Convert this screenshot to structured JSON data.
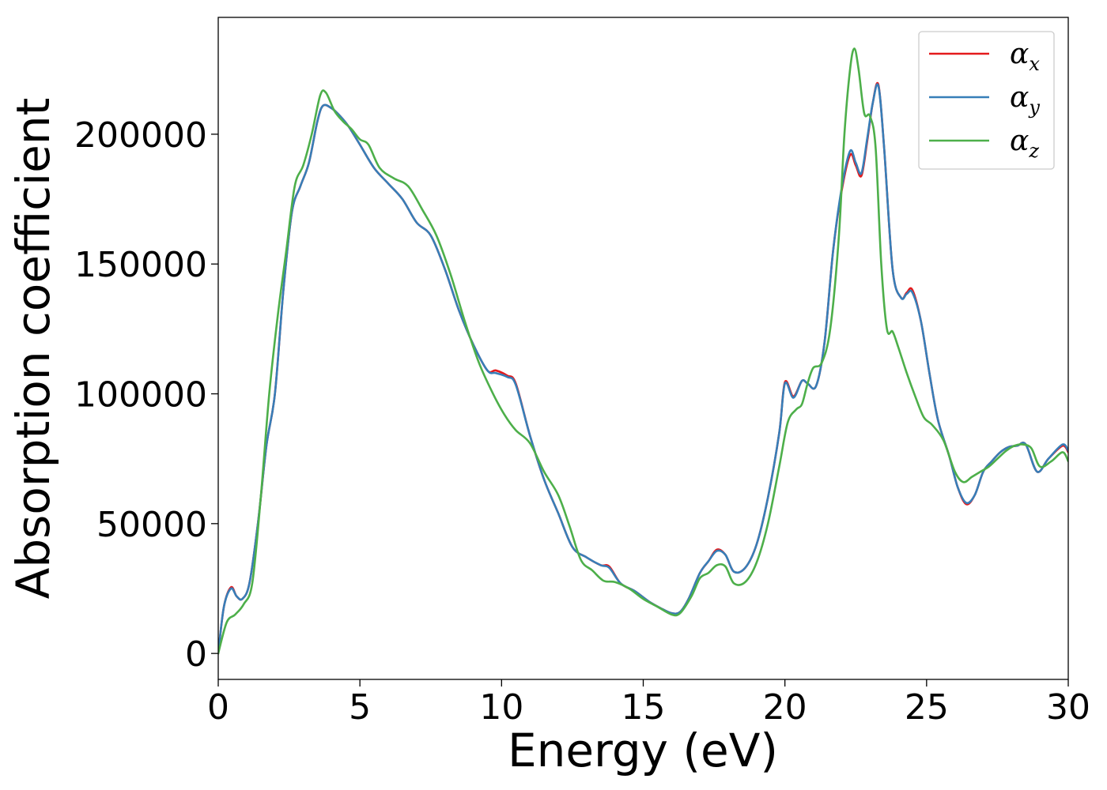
{
  "chart_data": {
    "type": "line",
    "title": "",
    "xlabel": "Energy (eV)",
    "ylabel": "Absorption coefficient",
    "xlim": [
      0,
      30
    ],
    "ylim": [
      -10000,
      245000
    ],
    "xticks": [
      0,
      5,
      10,
      15,
      20,
      25,
      30
    ],
    "yticks": [
      0,
      50000,
      100000,
      150000,
      200000
    ],
    "grid": false,
    "legend_position": "top-right",
    "series": [
      {
        "name": "α",
        "subscript": "x",
        "color": "#e41a1c",
        "x": [
          0,
          0.2,
          0.45,
          0.65,
          0.85,
          1.1,
          1.4,
          1.7,
          2.0,
          2.3,
          2.6,
          2.9,
          3.2,
          3.5,
          3.7,
          4.0,
          4.3,
          4.6,
          5.0,
          5.5,
          6.0,
          6.5,
          7.0,
          7.5,
          8.0,
          8.5,
          9.0,
          9.5,
          9.8,
          10.2,
          10.5,
          11.0,
          11.5,
          12.0,
          12.5,
          13.0,
          13.5,
          13.8,
          14.2,
          14.7,
          15.2,
          15.6,
          16.0,
          16.3,
          16.6,
          17.0,
          17.3,
          17.6,
          17.9,
          18.2,
          18.6,
          19.0,
          19.4,
          19.8,
          20.0,
          20.3,
          20.6,
          20.8,
          21.1,
          21.4,
          21.7,
          22.0,
          22.3,
          22.5,
          22.7,
          22.9,
          23.1,
          23.3,
          23.5,
          23.8,
          24.1,
          24.3,
          24.5,
          24.8,
          25.1,
          25.4,
          25.8,
          26.1,
          26.4,
          26.7,
          27.0,
          27.3,
          27.6,
          27.9,
          28.2,
          28.5,
          28.9,
          29.3,
          29.8,
          30.0
        ],
        "y": [
          0,
          18000,
          25500,
          22000,
          21000,
          27000,
          50000,
          80000,
          100000,
          140000,
          170000,
          180000,
          189000,
          205000,
          211000,
          210000,
          207000,
          203000,
          196000,
          187000,
          181000,
          175000,
          166000,
          161000,
          148000,
          132000,
          119000,
          109000,
          109000,
          107000,
          104000,
          84000,
          67000,
          54000,
          41000,
          37000,
          34000,
          33500,
          27000,
          24000,
          20000,
          17500,
          15500,
          16000,
          21000,
          31000,
          35500,
          40000,
          38000,
          31500,
          33000,
          42000,
          60000,
          85000,
          104500,
          99000,
          105000,
          104000,
          103000,
          120000,
          155000,
          178000,
          192000,
          188000,
          184000,
          197000,
          212000,
          219000,
          195000,
          148000,
          137000,
          139000,
          140000,
          128000,
          108000,
          90000,
          76000,
          64000,
          57500,
          61000,
          70000,
          74000,
          77500,
          79500,
          80000,
          80500,
          70000,
          75000,
          80000,
          77500
        ]
      },
      {
        "name": "α",
        "subscript": "y",
        "color": "#377eb8",
        "x": [
          0,
          0.2,
          0.45,
          0.65,
          0.85,
          1.1,
          1.4,
          1.7,
          2.0,
          2.3,
          2.6,
          2.9,
          3.2,
          3.5,
          3.7,
          4.0,
          4.3,
          4.6,
          5.0,
          5.5,
          6.0,
          6.5,
          7.0,
          7.5,
          8.0,
          8.5,
          9.0,
          9.5,
          9.8,
          10.2,
          10.5,
          11.0,
          11.5,
          12.0,
          12.5,
          13.0,
          13.5,
          13.8,
          14.2,
          14.7,
          15.2,
          15.6,
          16.0,
          16.3,
          16.6,
          17.0,
          17.3,
          17.6,
          17.9,
          18.2,
          18.6,
          19.0,
          19.4,
          19.8,
          20.0,
          20.3,
          20.6,
          20.8,
          21.1,
          21.4,
          21.7,
          22.0,
          22.3,
          22.5,
          22.7,
          22.9,
          23.1,
          23.3,
          23.5,
          23.8,
          24.1,
          24.3,
          24.5,
          24.8,
          25.1,
          25.4,
          25.8,
          26.1,
          26.4,
          26.7,
          27.0,
          27.3,
          27.6,
          27.9,
          28.2,
          28.5,
          28.9,
          29.3,
          29.8,
          30.0
        ],
        "y": [
          0,
          18000,
          25000,
          22000,
          21000,
          27000,
          50000,
          80000,
          100000,
          140000,
          170000,
          180000,
          189000,
          205000,
          211000,
          210000,
          207000,
          203000,
          196000,
          187000,
          181000,
          175000,
          166000,
          161000,
          148000,
          132000,
          119000,
          109000,
          108000,
          106500,
          103500,
          84000,
          67000,
          54000,
          41000,
          37000,
          34000,
          33000,
          27000,
          24000,
          20000,
          17500,
          15500,
          16000,
          21000,
          31000,
          35500,
          39500,
          38000,
          31500,
          33000,
          42000,
          60000,
          85000,
          104000,
          98500,
          105000,
          104000,
          103000,
          120000,
          155000,
          179000,
          193500,
          189000,
          185000,
          198000,
          212000,
          218500,
          195000,
          148000,
          137000,
          138500,
          139000,
          128000,
          108000,
          90000,
          76000,
          64000,
          58000,
          61000,
          70000,
          74000,
          77500,
          79500,
          80000,
          80500,
          70000,
          75000,
          80500,
          78000
        ]
      },
      {
        "name": "α",
        "subscript": "z",
        "color": "#4daf4a",
        "x": [
          0,
          0.3,
          0.6,
          0.9,
          1.2,
          1.5,
          1.8,
          2.1,
          2.4,
          2.7,
          3.0,
          3.3,
          3.6,
          3.8,
          4.1,
          4.4,
          4.7,
          5.0,
          5.3,
          5.7,
          6.2,
          6.7,
          7.2,
          7.7,
          8.2,
          8.7,
          9.2,
          9.7,
          10.1,
          10.5,
          11.0,
          11.5,
          12.0,
          12.4,
          12.8,
          13.2,
          13.6,
          14.0,
          14.5,
          15.0,
          15.5,
          16.0,
          16.3,
          16.7,
          17.0,
          17.3,
          17.6,
          17.9,
          18.2,
          18.6,
          19.0,
          19.4,
          19.8,
          20.1,
          20.4,
          20.6,
          20.8,
          21.0,
          21.3,
          21.6,
          21.9,
          22.1,
          22.3,
          22.45,
          22.6,
          22.8,
          23.0,
          23.2,
          23.4,
          23.6,
          23.8,
          24.0,
          24.3,
          24.6,
          24.9,
          25.2,
          25.6,
          26.0,
          26.3,
          26.6,
          26.9,
          27.2,
          27.5,
          27.8,
          28.1,
          28.4,
          28.7,
          29.0,
          29.4,
          29.8,
          30.0
        ],
        "y": [
          0,
          12000,
          15000,
          19000,
          27000,
          60000,
          100000,
          130000,
          155000,
          180000,
          188000,
          200000,
          215000,
          216000,
          209000,
          205000,
          202000,
          198000,
          196000,
          187000,
          183000,
          180000,
          171000,
          161000,
          146000,
          128000,
          112000,
          100000,
          92000,
          86000,
          81000,
          70000,
          61000,
          49000,
          36000,
          32000,
          28000,
          27500,
          25000,
          21000,
          18000,
          15000,
          15500,
          22000,
          29000,
          31000,
          34000,
          33500,
          27000,
          27500,
          35000,
          50000,
          72000,
          89000,
          94000,
          96000,
          104000,
          110000,
          112000,
          125000,
          160000,
          200000,
          225000,
          233000,
          225000,
          208000,
          207000,
          195000,
          150000,
          125000,
          124000,
          118000,
          108000,
          99000,
          91000,
          88000,
          82000,
          70000,
          66000,
          68000,
          70000,
          72000,
          75000,
          78000,
          80000,
          80500,
          79000,
          72000,
          74000,
          77500,
          74000
        ]
      }
    ]
  }
}
